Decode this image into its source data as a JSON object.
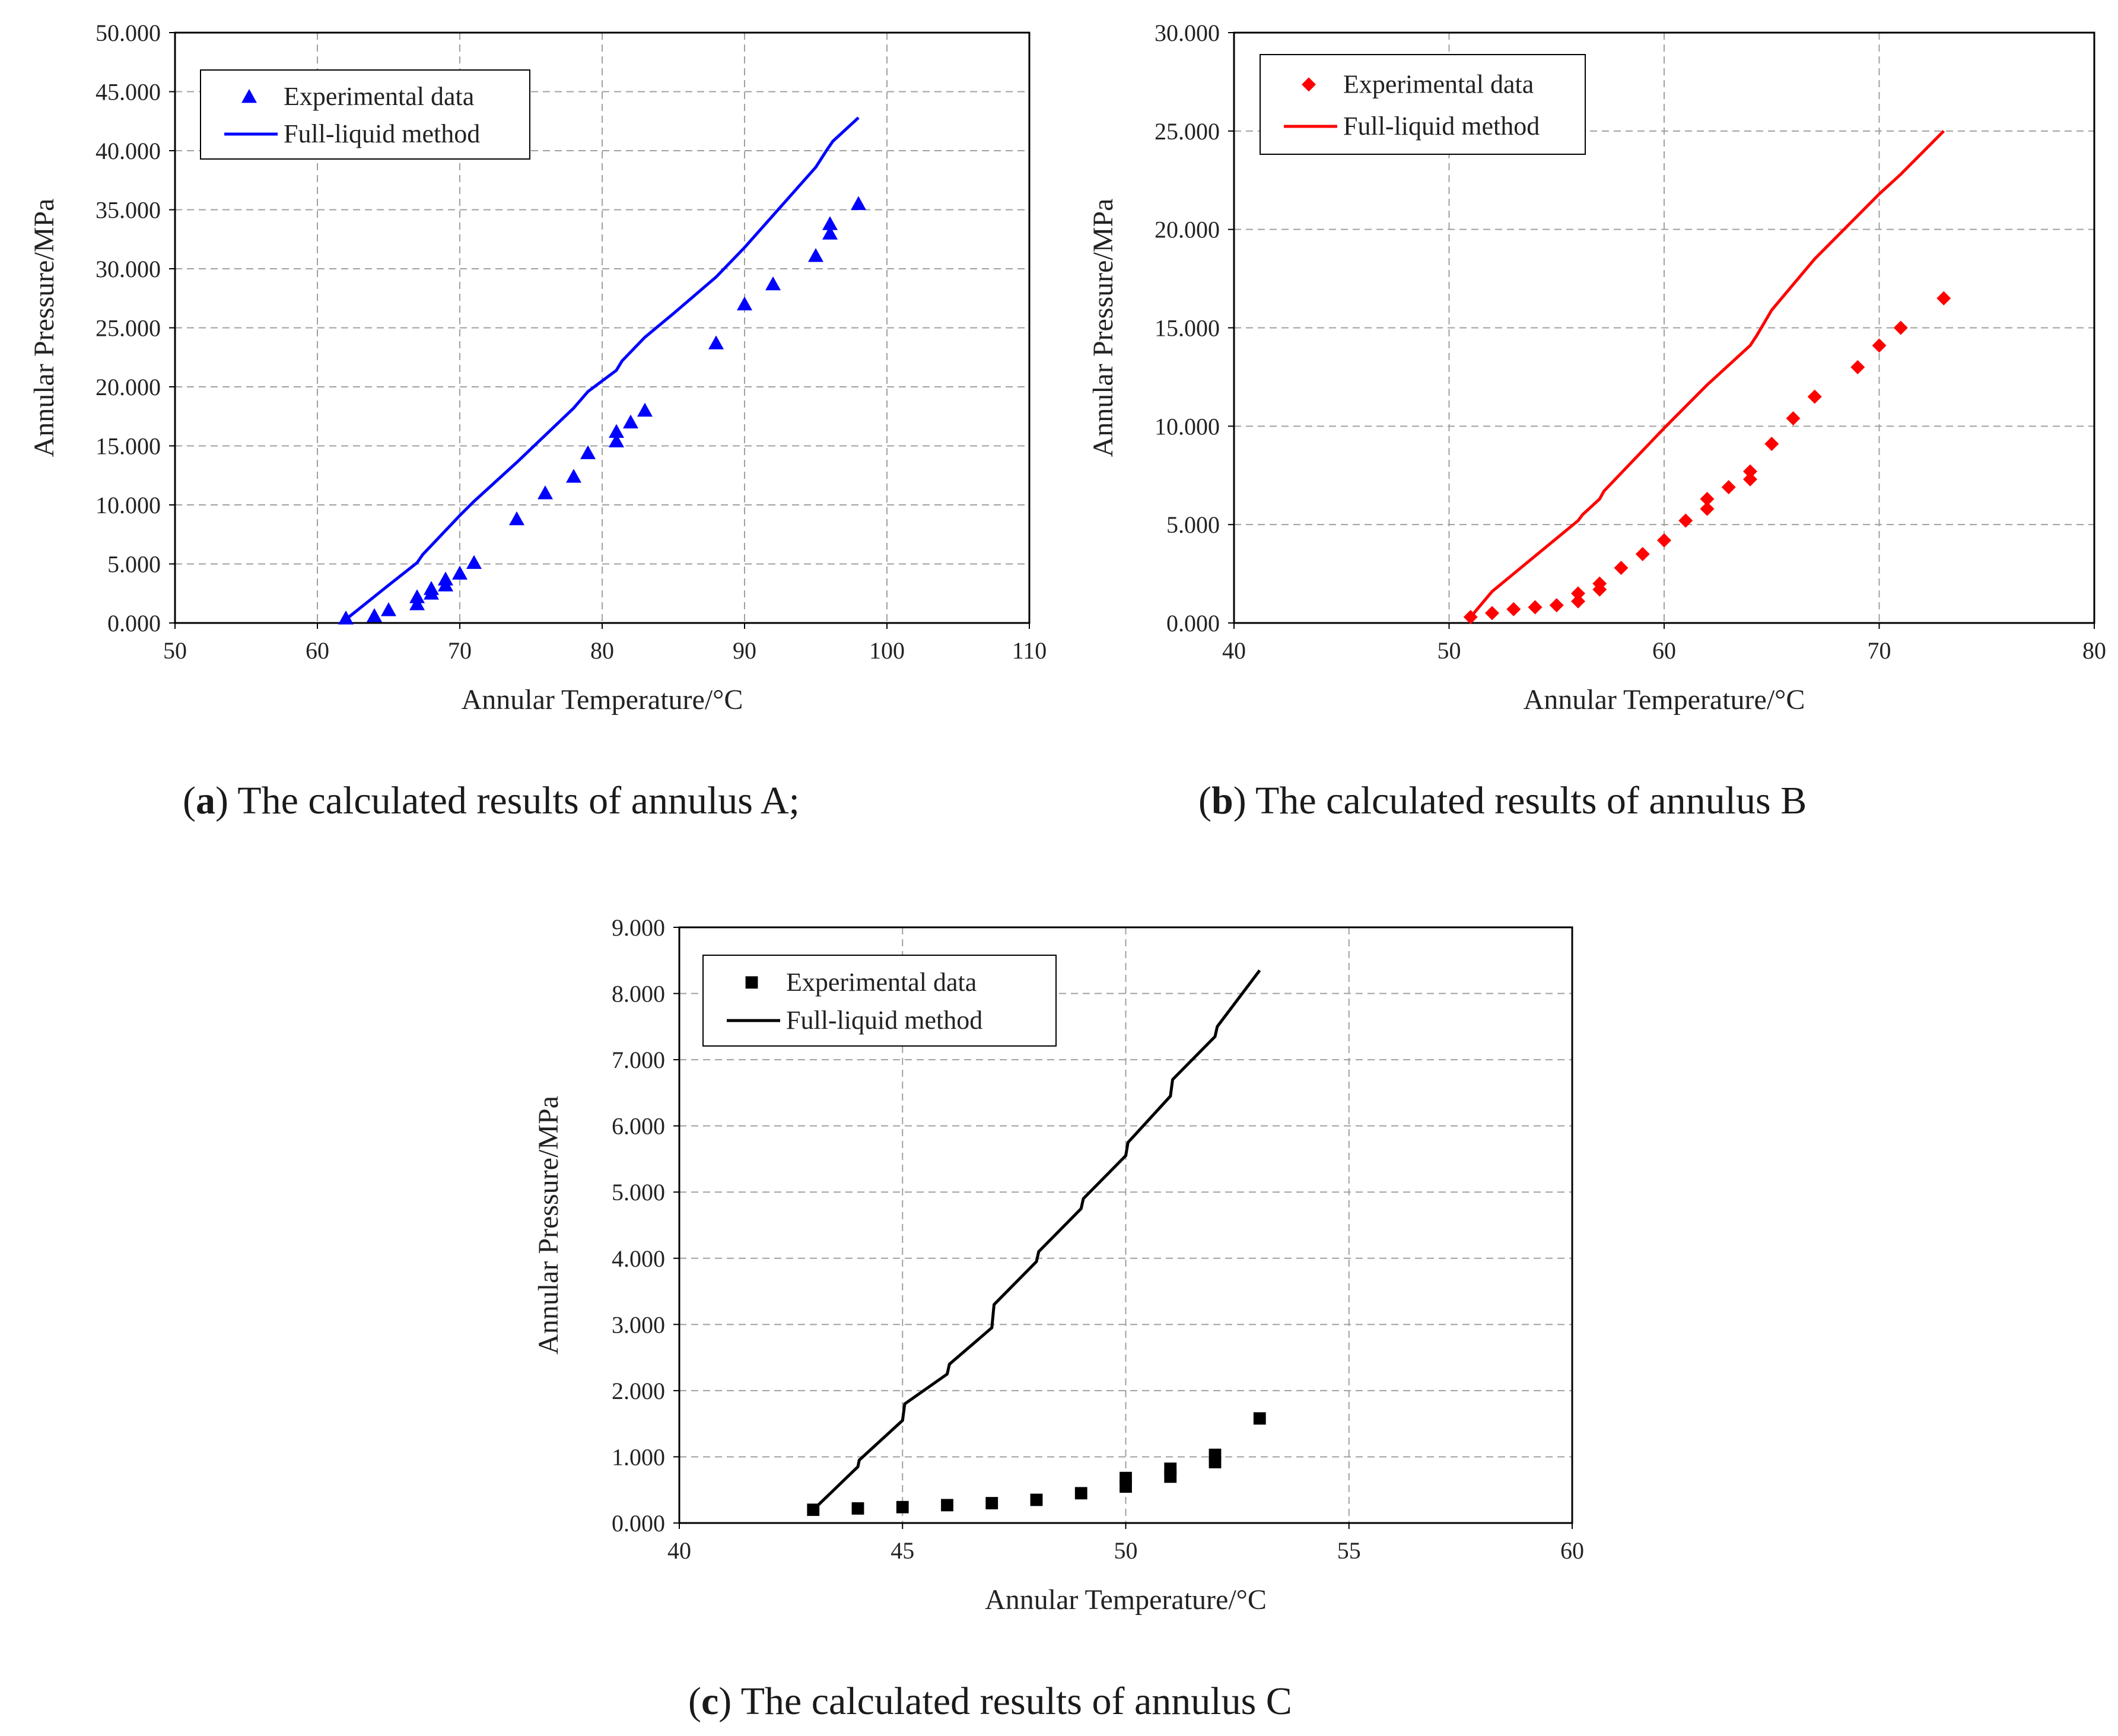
{
  "chart_data": [
    {
      "type": "scatter+line",
      "color": "#0000ff",
      "marker": "triangle",
      "xlabel": "Annular Temperature/°C",
      "ylabel": "Annular Pressure/MPa",
      "xlim": [
        50,
        110
      ],
      "ylim": [
        0,
        50
      ],
      "xticks": [
        50,
        60,
        70,
        80,
        90,
        100,
        110
      ],
      "yticks": [
        0,
        5,
        10,
        15,
        20,
        25,
        30,
        35,
        40,
        45,
        50
      ],
      "xtick_labels": [
        "50",
        "60",
        "70",
        "80",
        "90",
        "100",
        "110"
      ],
      "ytick_labels": [
        "0.000",
        "5.000",
        "10.000",
        "15.000",
        "20.000",
        "25.000",
        "30.000",
        "35.000",
        "40.000",
        "45.000",
        "50.000"
      ],
      "legend": [
        "Experimental data",
        "Full-liquid method"
      ],
      "legend_position": "top-left",
      "grid": true,
      "scatter_name": "Experimental data",
      "scatter": {
        "x": [
          62,
          64,
          65,
          67,
          67,
          68,
          68,
          69,
          69,
          70,
          71,
          74,
          76,
          78,
          79,
          81,
          81,
          82,
          83,
          88,
          90,
          92,
          95,
          96,
          96,
          98
        ],
        "y": [
          0.4,
          0.6,
          1.1,
          1.6,
          2.2,
          2.5,
          2.9,
          3.2,
          3.7,
          4.2,
          5.1,
          8.8,
          11.0,
          12.4,
          14.4,
          15.4,
          16.2,
          17.0,
          18.0,
          23.7,
          27.0,
          28.7,
          31.1,
          33.0,
          33.8,
          35.5
        ]
      },
      "line_name": "Full-liquid method",
      "line": {
        "x": [
          62,
          65,
          67,
          67.4,
          70,
          71,
          74,
          78,
          79,
          81,
          81.4,
          83,
          85,
          88,
          90,
          95,
          95.8,
          96.2,
          98
        ],
        "y": [
          0.3,
          3.2,
          5.1,
          5.8,
          9.1,
          10.3,
          13.6,
          18.2,
          19.6,
          21.4,
          22.2,
          24.2,
          26.2,
          29.3,
          31.8,
          38.6,
          40.1,
          40.8,
          42.8
        ]
      },
      "caption": {
        "letter": "a",
        "text": "The calculated results of annulus A;"
      }
    },
    {
      "type": "scatter+line",
      "color": "#ff0000",
      "marker": "diamond",
      "xlabel": "Annular Temperature/°C",
      "ylabel": "Annular Pressure/MPa",
      "xlim": [
        40,
        80
      ],
      "ylim": [
        0,
        30
      ],
      "xticks": [
        40,
        50,
        60,
        70,
        80
      ],
      "yticks": [
        0,
        5,
        10,
        15,
        20,
        25,
        30
      ],
      "xtick_labels": [
        "40",
        "50",
        "60",
        "70",
        "80"
      ],
      "ytick_labels": [
        "0.000",
        "5.000",
        "10.000",
        "15.000",
        "20.000",
        "25.000",
        "30.000"
      ],
      "legend": [
        "Experimental data",
        "Full-liquid method"
      ],
      "legend_position": "top-left",
      "grid": true,
      "scatter_name": "Experimental data",
      "scatter": {
        "x": [
          51,
          52,
          53,
          54,
          55,
          56,
          56,
          57,
          57,
          58,
          59,
          60,
          61,
          62,
          62,
          63,
          64,
          64,
          65,
          66,
          67,
          69,
          70,
          71,
          73
        ],
        "y": [
          0.3,
          0.5,
          0.7,
          0.8,
          0.9,
          1.1,
          1.5,
          1.7,
          2.0,
          2.8,
          3.5,
          4.2,
          5.2,
          5.8,
          6.3,
          6.9,
          7.3,
          7.7,
          9.1,
          10.4,
          11.5,
          13.0,
          14.1,
          15.0,
          16.5
        ]
      },
      "line_name": "Full-liquid method",
      "line": {
        "x": [
          51,
          52,
          54,
          56,
          56.2,
          57,
          57.2,
          60,
          62,
          64,
          64.3,
          65,
          67,
          70,
          71,
          73
        ],
        "y": [
          0.3,
          1.6,
          3.4,
          5.2,
          5.5,
          6.3,
          6.7,
          9.9,
          12.1,
          14.1,
          14.6,
          15.9,
          18.5,
          21.8,
          22.8,
          25.0
        ]
      },
      "caption": {
        "letter": "b",
        "text": "The calculated results of annulus B"
      }
    },
    {
      "type": "scatter+line",
      "color": "#000000",
      "marker": "square",
      "xlabel": "Annular Temperature/°C",
      "ylabel": "Annular Pressure/MPa",
      "xlim": [
        40,
        60
      ],
      "ylim": [
        0,
        9
      ],
      "xticks": [
        40,
        45,
        50,
        55,
        60
      ],
      "yticks": [
        0,
        1,
        2,
        3,
        4,
        5,
        6,
        7,
        8,
        9
      ],
      "xtick_labels": [
        "40",
        "45",
        "50",
        "55",
        "60"
      ],
      "ytick_labels": [
        "0.000",
        "1.000",
        "2.000",
        "3.000",
        "4.000",
        "5.000",
        "6.000",
        "7.000",
        "8.000",
        "9.000"
      ],
      "legend": [
        "Experimental data",
        "Full-liquid method"
      ],
      "legend_position": "top-left",
      "grid": true,
      "scatter_name": "Experimental data",
      "scatter": {
        "x": [
          43,
          44,
          45,
          46,
          47,
          48,
          49,
          50,
          50,
          51,
          51,
          52,
          52,
          53
        ],
        "y": [
          0.2,
          0.22,
          0.24,
          0.27,
          0.3,
          0.35,
          0.45,
          0.55,
          0.68,
          0.7,
          0.82,
          0.92,
          1.03,
          1.58
        ]
      },
      "line_name": "Full-liquid method",
      "line": {
        "x": [
          43,
          44,
          44,
          44.03,
          45,
          45,
          45.05,
          46,
          46,
          46.05,
          47,
          47,
          47.05,
          48,
          48,
          48.05,
          49,
          49,
          49.05,
          50,
          50,
          50.05,
          51,
          51,
          51.05,
          52,
          52,
          52.05,
          53
        ],
        "y": [
          0.2,
          0.85,
          0.85,
          0.95,
          1.55,
          1.55,
          1.8,
          2.25,
          2.25,
          2.4,
          2.95,
          2.95,
          3.3,
          3.95,
          3.95,
          4.1,
          4.75,
          4.75,
          4.9,
          5.55,
          5.55,
          5.75,
          6.45,
          6.45,
          6.7,
          7.35,
          7.35,
          7.5,
          8.35
        ]
      },
      "caption": {
        "letter": "c",
        "text": "The calculated results of annulus C"
      }
    }
  ]
}
